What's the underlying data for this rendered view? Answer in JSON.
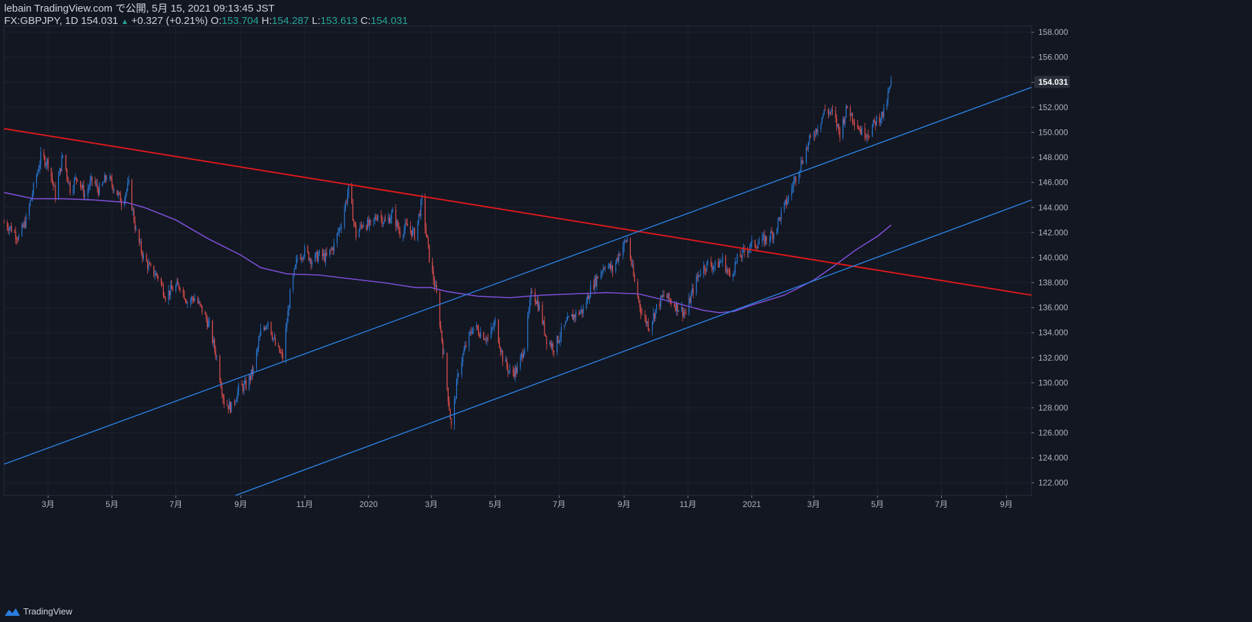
{
  "header": {
    "line1": "lebain TradingView.com で公開, 5月 15, 2021 09:13:45 JST",
    "symbol": "FX:GBPJPY, 1D",
    "last": "154.031",
    "change_arrow": "▲",
    "change": "+0.327 (+0.21%)",
    "o_label": "O:",
    "o": "153.704",
    "h_label": "H:",
    "h": "154.287",
    "l_label": "L:",
    "l": "153.613",
    "c_label": "C:",
    "c": "154.031"
  },
  "footer": {
    "brand": "TradingView"
  },
  "colors": {
    "background": "#131722",
    "up": "#2a7fe0",
    "down": "#ef5350",
    "ma": "#7e4fd6",
    "resistance": "#e0191b",
    "channel": "#2a7fe0",
    "grid": "#1e222d",
    "price_tag": "#2a2e39"
  },
  "chart_data": {
    "type": "candlestick",
    "symbol": "FX:GBPJPY",
    "interval": "1D",
    "y_range": [
      121,
      158.5
    ],
    "y_ticks": [
      122,
      124,
      126,
      128,
      130,
      132,
      134,
      136,
      138,
      140,
      142,
      144,
      146,
      148,
      150,
      152,
      154,
      156,
      158
    ],
    "y_tick_labels": [
      "122.000",
      "124.000",
      "126.000",
      "128.000",
      "130.000",
      "132.000",
      "134.000",
      "136.000",
      "138.000",
      "140.000",
      "142.000",
      "144.000",
      "146.000",
      "148.000",
      "150.000",
      "152.000",
      "154.000",
      "156.000",
      "158.000"
    ],
    "last_price_label": "154.031",
    "last_price": 154.031,
    "x_range": [
      "2019-01-18",
      "2021-09-25"
    ],
    "x_ticks": [
      {
        "date": "2019-03-01",
        "label": "3月"
      },
      {
        "date": "2019-05-01",
        "label": "5月"
      },
      {
        "date": "2019-07-01",
        "label": "7月"
      },
      {
        "date": "2019-09-01",
        "label": "9月"
      },
      {
        "date": "2019-11-01",
        "label": "11月"
      },
      {
        "date": "2020-01-01",
        "label": "2020"
      },
      {
        "date": "2020-03-01",
        "label": "3月"
      },
      {
        "date": "2020-05-01",
        "label": "5月"
      },
      {
        "date": "2020-07-01",
        "label": "7月"
      },
      {
        "date": "2020-09-01",
        "label": "9月"
      },
      {
        "date": "2020-11-01",
        "label": "11月"
      },
      {
        "date": "2021-01-01",
        "label": "2021"
      },
      {
        "date": "2021-03-01",
        "label": "3月"
      },
      {
        "date": "2021-05-01",
        "label": "5月"
      },
      {
        "date": "2021-07-01",
        "label": "7月"
      },
      {
        "date": "2021-09-01",
        "label": "9月"
      }
    ],
    "price_path": [
      [
        "2019-01-18",
        142.8
      ],
      [
        "2019-01-25",
        142.3
      ],
      [
        "2019-02-01",
        141.6
      ],
      [
        "2019-02-08",
        143.0
      ],
      [
        "2019-02-15",
        145.5
      ],
      [
        "2019-02-22",
        148.0
      ],
      [
        "2019-03-01",
        147.6
      ],
      [
        "2019-03-08",
        145.0
      ],
      [
        "2019-03-15",
        148.2
      ],
      [
        "2019-03-22",
        145.5
      ],
      [
        "2019-03-29",
        146.5
      ],
      [
        "2019-04-05",
        145.0
      ],
      [
        "2019-04-12",
        146.2
      ],
      [
        "2019-04-19",
        145.3
      ],
      [
        "2019-04-26",
        146.5
      ],
      [
        "2019-05-03",
        145.6
      ],
      [
        "2019-05-10",
        144.5
      ],
      [
        "2019-05-17",
        145.8
      ],
      [
        "2019-05-24",
        142.0
      ],
      [
        "2019-05-31",
        140.0
      ],
      [
        "2019-06-07",
        139.0
      ],
      [
        "2019-06-14",
        138.5
      ],
      [
        "2019-06-21",
        137.0
      ],
      [
        "2019-06-28",
        137.5
      ],
      [
        "2019-07-05",
        137.8
      ],
      [
        "2019-07-12",
        136.5
      ],
      [
        "2019-07-19",
        136.8
      ],
      [
        "2019-07-26",
        135.8
      ],
      [
        "2019-08-02",
        134.5
      ],
      [
        "2019-08-09",
        132.0
      ],
      [
        "2019-08-16",
        128.5
      ],
      [
        "2019-08-23",
        128.0
      ],
      [
        "2019-08-30",
        129.5
      ],
      [
        "2019-09-06",
        129.8
      ],
      [
        "2019-09-13",
        131.0
      ],
      [
        "2019-09-20",
        134.0
      ],
      [
        "2019-09-27",
        135.0
      ],
      [
        "2019-10-04",
        133.0
      ],
      [
        "2019-10-11",
        132.0
      ],
      [
        "2019-10-18",
        137.0
      ],
      [
        "2019-10-25",
        140.0
      ],
      [
        "2019-11-01",
        140.5
      ],
      [
        "2019-11-08",
        139.8
      ],
      [
        "2019-11-15",
        140.2
      ],
      [
        "2019-11-22",
        140.0
      ],
      [
        "2019-11-29",
        141.0
      ],
      [
        "2019-12-06",
        142.8
      ],
      [
        "2019-12-13",
        145.5
      ],
      [
        "2019-12-20",
        141.8
      ],
      [
        "2019-12-27",
        142.8
      ],
      [
        "2020-01-03",
        142.5
      ],
      [
        "2020-01-10",
        143.5
      ],
      [
        "2020-01-17",
        142.8
      ],
      [
        "2020-01-24",
        143.5
      ],
      [
        "2020-01-31",
        142.0
      ],
      [
        "2020-02-07",
        142.5
      ],
      [
        "2020-02-14",
        141.8
      ],
      [
        "2020-02-21",
        144.5
      ],
      [
        "2020-02-28",
        140.0
      ],
      [
        "2020-03-06",
        137.0
      ],
      [
        "2020-03-13",
        132.0
      ],
      [
        "2020-03-20",
        126.5
      ],
      [
        "2020-03-27",
        131.0
      ],
      [
        "2020-04-03",
        133.0
      ],
      [
        "2020-04-10",
        134.5
      ],
      [
        "2020-04-17",
        134.0
      ],
      [
        "2020-04-24",
        133.5
      ],
      [
        "2020-05-01",
        134.8
      ],
      [
        "2020-05-08",
        132.0
      ],
      [
        "2020-05-15",
        130.8
      ],
      [
        "2020-05-22",
        131.0
      ],
      [
        "2020-05-29",
        133.0
      ],
      [
        "2020-06-05",
        137.5
      ],
      [
        "2020-06-12",
        136.0
      ],
      [
        "2020-06-19",
        133.5
      ],
      [
        "2020-06-26",
        132.8
      ],
      [
        "2020-07-03",
        134.0
      ],
      [
        "2020-07-10",
        135.0
      ],
      [
        "2020-07-17",
        135.5
      ],
      [
        "2020-07-24",
        135.8
      ],
      [
        "2020-07-31",
        137.5
      ],
      [
        "2020-08-07",
        138.5
      ],
      [
        "2020-08-14",
        139.5
      ],
      [
        "2020-08-21",
        139.0
      ],
      [
        "2020-08-28",
        140.5
      ],
      [
        "2020-09-04",
        141.5
      ],
      [
        "2020-09-11",
        138.0
      ],
      [
        "2020-09-18",
        135.5
      ],
      [
        "2020-09-25",
        134.5
      ],
      [
        "2020-10-02",
        136.0
      ],
      [
        "2020-10-09",
        137.0
      ],
      [
        "2020-10-16",
        136.5
      ],
      [
        "2020-10-23",
        136.0
      ],
      [
        "2020-10-30",
        135.5
      ],
      [
        "2020-11-06",
        137.5
      ],
      [
        "2020-11-13",
        139.0
      ],
      [
        "2020-11-20",
        139.5
      ],
      [
        "2020-11-27",
        139.3
      ],
      [
        "2020-12-04",
        139.8
      ],
      [
        "2020-12-11",
        138.5
      ],
      [
        "2020-12-18",
        139.8
      ],
      [
        "2020-12-25",
        140.5
      ],
      [
        "2021-01-01",
        141.0
      ],
      [
        "2021-01-08",
        141.2
      ],
      [
        "2021-01-15",
        141.5
      ],
      [
        "2021-01-22",
        142.0
      ],
      [
        "2021-01-29",
        143.5
      ],
      [
        "2021-02-05",
        144.8
      ],
      [
        "2021-02-12",
        146.5
      ],
      [
        "2021-02-19",
        148.0
      ],
      [
        "2021-02-26",
        149.5
      ],
      [
        "2021-03-05",
        150.5
      ],
      [
        "2021-03-12",
        151.8
      ],
      [
        "2021-03-19",
        151.5
      ],
      [
        "2021-03-26",
        150.0
      ],
      [
        "2021-04-02",
        152.0
      ],
      [
        "2021-04-09",
        151.0
      ],
      [
        "2021-04-16",
        150.0
      ],
      [
        "2021-04-23",
        150.0
      ],
      [
        "2021-04-30",
        151.0
      ],
      [
        "2021-05-07",
        151.5
      ],
      [
        "2021-05-14",
        154.0
      ]
    ],
    "moving_average": [
      [
        "2019-01-18",
        145.2
      ],
      [
        "2019-02-15",
        144.7
      ],
      [
        "2019-03-15",
        144.7
      ],
      [
        "2019-04-15",
        144.6
      ],
      [
        "2019-05-15",
        144.4
      ],
      [
        "2019-06-01",
        144.0
      ],
      [
        "2019-07-01",
        143.0
      ],
      [
        "2019-08-01",
        141.5
      ],
      [
        "2019-09-01",
        140.2
      ],
      [
        "2019-09-20",
        139.2
      ],
      [
        "2019-10-15",
        138.7
      ],
      [
        "2019-11-15",
        138.6
      ],
      [
        "2019-12-15",
        138.3
      ],
      [
        "2020-01-15",
        138.0
      ],
      [
        "2020-02-15",
        137.6
      ],
      [
        "2020-03-01",
        137.6
      ],
      [
        "2020-03-15",
        137.3
      ],
      [
        "2020-04-15",
        136.9
      ],
      [
        "2020-05-15",
        136.8
      ],
      [
        "2020-06-15",
        137.0
      ],
      [
        "2020-07-15",
        137.1
      ],
      [
        "2020-08-15",
        137.2
      ],
      [
        "2020-09-15",
        137.1
      ],
      [
        "2020-10-15",
        136.5
      ],
      [
        "2020-11-15",
        135.8
      ],
      [
        "2020-12-01",
        135.6
      ],
      [
        "2020-12-15",
        135.7
      ],
      [
        "2021-01-01",
        136.2
      ],
      [
        "2021-02-01",
        137.0
      ],
      [
        "2021-03-01",
        138.2
      ],
      [
        "2021-03-20",
        139.3
      ],
      [
        "2021-04-10",
        140.6
      ],
      [
        "2021-05-01",
        141.7
      ],
      [
        "2021-05-14",
        142.6
      ]
    ],
    "trendlines": [
      {
        "name": "resistance",
        "from": [
          "2019-01-18",
          150.3
        ],
        "to": [
          "2021-09-25",
          137.0
        ]
      },
      {
        "name": "channel-upper",
        "from": [
          "2019-01-18",
          123.5
        ],
        "to": [
          "2021-09-25",
          153.6
        ]
      },
      {
        "name": "channel-lower",
        "from": [
          "2019-08-27",
          121.0
        ],
        "to": [
          "2021-09-25",
          144.6
        ]
      }
    ]
  }
}
